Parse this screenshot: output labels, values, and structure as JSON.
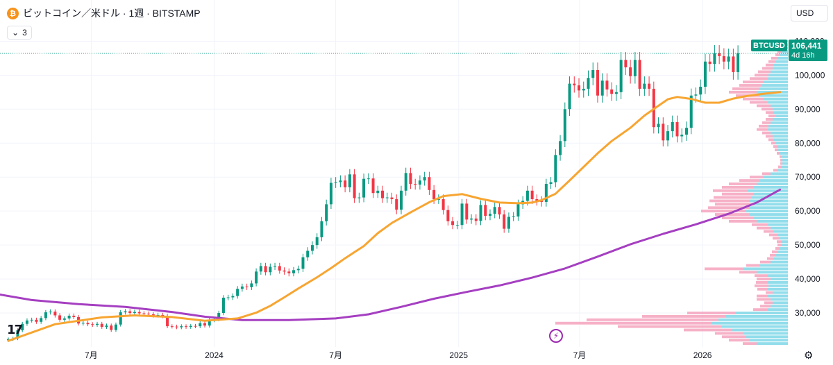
{
  "header": {
    "coin_glyph": "₿",
    "title": "ビットコイン／米ドル · 1週 · BITSTAMP"
  },
  "indicators_button": {
    "count": "3"
  },
  "currency_button": {
    "label": "USD"
  },
  "logo": {
    "text": "17"
  },
  "last_price": {
    "symbol": "BTCUSD",
    "price": "106,441",
    "countdown": "4d 16h",
    "value": 106441
  },
  "colors": {
    "up": "#089981",
    "down": "#f23645",
    "ema_fast": "#f7a531",
    "ema_slow": "#a53fc1",
    "profile_up": "#7fd7e8",
    "profile_down": "#f5a3bd",
    "grid": "#f0f3fa"
  },
  "icons": {
    "replay": "lightning-icon",
    "settings": "gear-icon",
    "chevron": "chevron-down-icon"
  },
  "chart_data": {
    "type": "candlestick",
    "y_axis": {
      "range": [
        20000,
        116000
      ],
      "ticks": [
        {
          "value": 30000,
          "label": "30,000"
        },
        {
          "value": 40000,
          "label": "40,000"
        },
        {
          "value": 50000,
          "label": "50,000"
        },
        {
          "value": 60000,
          "label": "60,000"
        },
        {
          "value": 70000,
          "label": "70,000"
        },
        {
          "value": 80000,
          "label": "80,000"
        },
        {
          "value": 90000,
          "label": "90,000"
        },
        {
          "value": 100000,
          "label": "100,000"
        },
        {
          "value": 110000,
          "label": "110,000"
        }
      ]
    },
    "x_axis": {
      "start": "2023-02-27",
      "end": "2026-04-20",
      "ticks": [
        {
          "date": "2023-07-01",
          "label": "7月"
        },
        {
          "date": "2024-01-01",
          "label": "2024"
        },
        {
          "date": "2024-07-01",
          "label": "7月"
        },
        {
          "date": "2025-01-01",
          "label": "2025"
        },
        {
          "date": "2025-07-01",
          "label": "7月"
        },
        {
          "date": "2026-01-01",
          "label": "2026"
        }
      ]
    },
    "candles": {
      "interval_weeks": 1,
      "first_date": "2023-02-27",
      "closes": [
        22300,
        22500,
        24900,
        26800,
        27800,
        28000,
        27400,
        28500,
        30200,
        30400,
        29300,
        28000,
        28400,
        29200,
        28800,
        26900,
        27100,
        26700,
        26500,
        26800,
        25900,
        26300,
        25000,
        26600,
        30200,
        30500,
        30000,
        30300,
        29900,
        29800,
        29600,
        29300,
        29400,
        29100,
        26100,
        26000,
        25800,
        26100,
        25900,
        26200,
        26100,
        27000,
        26300,
        27900,
        28200,
        30000,
        34500,
        34600,
        35000,
        37100,
        37800,
        37600,
        38700,
        42200,
        43800,
        42000,
        43600,
        43800,
        42500,
        42200,
        41700,
        42600,
        43000,
        46400,
        48300,
        50000,
        52300,
        57000,
        62000,
        68300,
        68500,
        69000,
        67000,
        70800,
        63800,
        64000,
        69500,
        69600,
        65300,
        66000,
        63800,
        64000,
        63500,
        60400,
        66000,
        71200,
        68000,
        67800,
        69000,
        70000,
        66200,
        63500,
        63500,
        60300,
        57000,
        55900,
        55900,
        62200,
        57500,
        57800,
        57100,
        61800,
        58600,
        59200,
        61200,
        59000,
        54800,
        58300,
        58400,
        62000,
        63000,
        66000,
        63500,
        63000,
        62700,
        68000,
        68500,
        76500,
        80600,
        90000,
        97500,
        97000,
        95500,
        96000,
        99200,
        101500,
        94000,
        98400,
        95800,
        94500,
        95000,
        104500,
        102300,
        99700,
        104500,
        96000,
        97500,
        96000,
        84700,
        85700,
        80800,
        83500,
        86200,
        82000,
        82500,
        84500,
        94000,
        94300,
        96600,
        104000,
        103300,
        106500,
        105600,
        104000,
        105500,
        100900,
        106441
      ]
    },
    "ema_fast": {
      "name": "",
      "points": [
        [
          0,
          21800
        ],
        [
          10,
          26700
        ],
        [
          20,
          28700
        ],
        [
          27,
          29300
        ],
        [
          35,
          28800
        ],
        [
          42,
          27700
        ],
        [
          49,
          28400
        ],
        [
          53,
          30100
        ],
        [
          56,
          32100
        ],
        [
          59,
          34600
        ],
        [
          62,
          37200
        ],
        [
          66,
          40500
        ],
        [
          69,
          43200
        ],
        [
          72,
          46100
        ],
        [
          76,
          49700
        ],
        [
          79,
          53500
        ],
        [
          82,
          56500
        ],
        [
          86,
          59600
        ],
        [
          90,
          62600
        ],
        [
          93,
          64400
        ],
        [
          97,
          65000
        ],
        [
          101,
          63600
        ],
        [
          105,
          62500
        ],
        [
          109,
          62300
        ],
        [
          112,
          62500
        ],
        [
          114,
          63200
        ],
        [
          117,
          65100
        ],
        [
          120,
          69000
        ],
        [
          123,
          73000
        ],
        [
          126,
          77000
        ],
        [
          129,
          80600
        ],
        [
          133,
          84500
        ],
        [
          136,
          88100
        ],
        [
          139,
          91000
        ],
        [
          141,
          92900
        ],
        [
          143,
          93600
        ],
        [
          146,
          93000
        ],
        [
          149,
          91900
        ],
        [
          152,
          91900
        ],
        [
          155,
          93100
        ],
        [
          158,
          93900
        ],
        [
          162,
          94600
        ],
        [
          165,
          95000
        ]
      ]
    },
    "ema_slow": {
      "name": "",
      "points": [
        [
          -3,
          35700
        ],
        [
          5,
          33800
        ],
        [
          15,
          32600
        ],
        [
          25,
          31800
        ],
        [
          35,
          30300
        ],
        [
          42,
          28900
        ],
        [
          50,
          27900
        ],
        [
          60,
          27900
        ],
        [
          70,
          28400
        ],
        [
          77,
          29600
        ],
        [
          84,
          31800
        ],
        [
          91,
          34200
        ],
        [
          98,
          36200
        ],
        [
          105,
          38100
        ],
        [
          112,
          40400
        ],
        [
          119,
          43100
        ],
        [
          126,
          46600
        ],
        [
          133,
          50200
        ],
        [
          140,
          53300
        ],
        [
          147,
          56100
        ],
        [
          154,
          59200
        ],
        [
          160,
          62500
        ],
        [
          165,
          66300
        ]
      ]
    },
    "volume_profile": {
      "bin_size": 1000,
      "bins": [
        {
          "price": 21000,
          "up": 45,
          "down": 20
        },
        {
          "price": 22000,
          "up": 55,
          "down": 30
        },
        {
          "price": 23000,
          "up": 60,
          "down": 35
        },
        {
          "price": 24000,
          "up": 65,
          "down": 40
        },
        {
          "price": 25000,
          "up": 80,
          "down": 70
        },
        {
          "price": 26000,
          "up": 95,
          "down": 150
        },
        {
          "price": 27000,
          "up": 110,
          "down": 225
        },
        {
          "price": 28000,
          "up": 100,
          "down": 190
        },
        {
          "price": 29000,
          "up": 90,
          "down": 120
        },
        {
          "price": 30000,
          "up": 75,
          "down": 70
        },
        {
          "price": 31000,
          "up": 30,
          "down": 20
        },
        {
          "price": 32000,
          "up": 25,
          "down": 15
        },
        {
          "price": 33000,
          "up": 22,
          "down": 12
        },
        {
          "price": 34000,
          "up": 25,
          "down": 20
        },
        {
          "price": 35000,
          "up": 30,
          "down": 15
        },
        {
          "price": 36000,
          "up": 22,
          "down": 10
        },
        {
          "price": 37000,
          "up": 30,
          "down": 14
        },
        {
          "price": 38000,
          "up": 28,
          "down": 20
        },
        {
          "price": 39000,
          "up": 30,
          "down": 16
        },
        {
          "price": 40000,
          "up": 25,
          "down": 20
        },
        {
          "price": 41000,
          "up": 30,
          "down": 18
        },
        {
          "price": 42000,
          "up": 45,
          "down": 25
        },
        {
          "price": 43000,
          "up": 65,
          "down": 55
        },
        {
          "price": 44000,
          "up": 40,
          "down": 20
        },
        {
          "price": 45000,
          "up": 25,
          "down": 15
        },
        {
          "price": 46000,
          "up": 20,
          "down": 10
        },
        {
          "price": 47000,
          "up": 18,
          "down": 8
        },
        {
          "price": 48000,
          "up": 15,
          "down": 8
        },
        {
          "price": 49000,
          "up": 12,
          "down": 6
        },
        {
          "price": 50000,
          "up": 10,
          "down": 5
        },
        {
          "price": 51000,
          "up": 10,
          "down": 6
        },
        {
          "price": 52000,
          "up": 12,
          "down": 10
        },
        {
          "price": 53000,
          "up": 15,
          "down": 12
        },
        {
          "price": 54000,
          "up": 20,
          "down": 15
        },
        {
          "price": 55000,
          "up": 25,
          "down": 20
        },
        {
          "price": 56000,
          "up": 30,
          "down": 22
        },
        {
          "price": 57000,
          "up": 45,
          "down": 40
        },
        {
          "price": 58000,
          "up": 50,
          "down": 45
        },
        {
          "price": 59000,
          "up": 55,
          "down": 50
        },
        {
          "price": 60000,
          "up": 60,
          "down": 65
        },
        {
          "price": 61000,
          "up": 55,
          "down": 60
        },
        {
          "price": 62000,
          "up": 50,
          "down": 55
        },
        {
          "price": 63000,
          "up": 55,
          "down": 58
        },
        {
          "price": 64000,
          "up": 52,
          "down": 55
        },
        {
          "price": 65000,
          "up": 50,
          "down": 45
        },
        {
          "price": 66000,
          "up": 58,
          "down": 50
        },
        {
          "price": 67000,
          "up": 50,
          "down": 45
        },
        {
          "price": 68000,
          "up": 45,
          "down": 40
        },
        {
          "price": 69000,
          "up": 40,
          "down": 30
        },
        {
          "price": 70000,
          "up": 35,
          "down": 20
        },
        {
          "price": 71000,
          "up": 25,
          "down": 12
        },
        {
          "price": 72000,
          "up": 15,
          "down": 6
        },
        {
          "price": 73000,
          "up": 10,
          "down": 4
        },
        {
          "price": 74000,
          "up": 8,
          "down": 3
        },
        {
          "price": 75000,
          "up": 8,
          "down": 3
        },
        {
          "price": 76000,
          "up": 9,
          "down": 3
        },
        {
          "price": 77000,
          "up": 12,
          "down": 4
        },
        {
          "price": 78000,
          "up": 14,
          "down": 5
        },
        {
          "price": 79000,
          "up": 15,
          "down": 6
        },
        {
          "price": 80000,
          "up": 18,
          "down": 6
        },
        {
          "price": 81000,
          "up": 20,
          "down": 8
        },
        {
          "price": 82000,
          "up": 22,
          "down": 10
        },
        {
          "price": 83000,
          "up": 25,
          "down": 12
        },
        {
          "price": 84000,
          "up": 30,
          "down": 15
        },
        {
          "price": 85000,
          "up": 28,
          "down": 14
        },
        {
          "price": 86000,
          "up": 25,
          "down": 12
        },
        {
          "price": 87000,
          "up": 22,
          "down": 10
        },
        {
          "price": 88000,
          "up": 18,
          "down": 10
        },
        {
          "price": 89000,
          "up": 20,
          "down": 12
        },
        {
          "price": 90000,
          "up": 22,
          "down": 16
        },
        {
          "price": 91000,
          "up": 25,
          "down": 20
        },
        {
          "price": 92000,
          "up": 30,
          "down": 25
        },
        {
          "price": 93000,
          "up": 35,
          "down": 30
        },
        {
          "price": 94000,
          "up": 40,
          "down": 35
        },
        {
          "price": 95000,
          "up": 45,
          "down": 40
        },
        {
          "price": 96000,
          "up": 42,
          "down": 38
        },
        {
          "price": 97000,
          "up": 38,
          "down": 32
        },
        {
          "price": 98000,
          "up": 35,
          "down": 30
        },
        {
          "price": 99000,
          "up": 30,
          "down": 25
        },
        {
          "price": 100000,
          "up": 28,
          "down": 20
        },
        {
          "price": 101000,
          "up": 25,
          "down": 18
        },
        {
          "price": 102000,
          "up": 22,
          "down": 15
        },
        {
          "price": 103000,
          "up": 20,
          "down": 12
        },
        {
          "price": 104000,
          "up": 18,
          "down": 10
        },
        {
          "price": 105000,
          "up": 16,
          "down": 8
        },
        {
          "price": 106000,
          "up": 12,
          "down": 6
        },
        {
          "price": 107000,
          "up": 10,
          "down": 5
        },
        {
          "price": 108000,
          "up": 8,
          "down": 4
        },
        {
          "price": 109000,
          "up": 6,
          "down": 3
        },
        {
          "price": 110000,
          "up": 4,
          "down": 2
        }
      ]
    },
    "grid": true
  }
}
